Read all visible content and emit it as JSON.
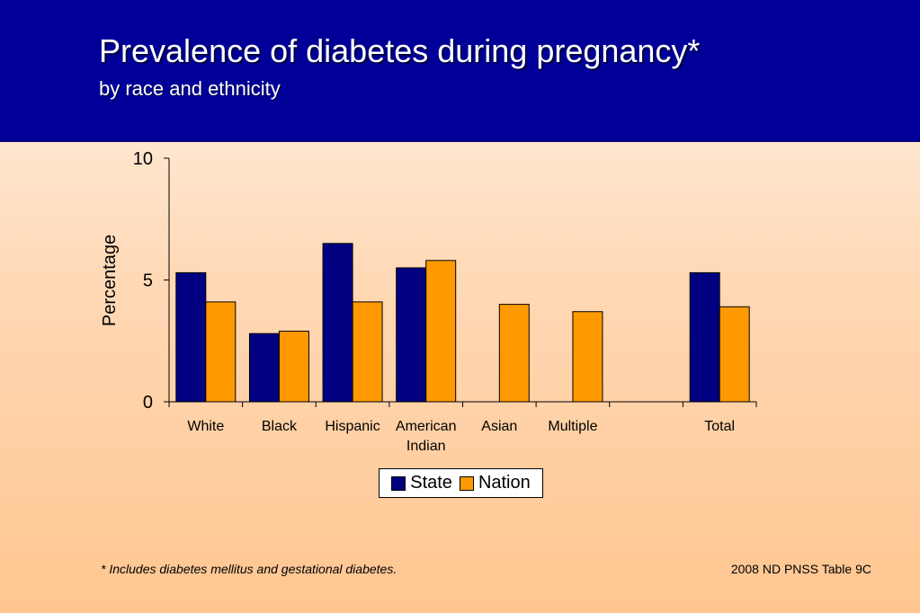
{
  "header": {
    "title": "Prevalence of diabetes during pregnancy*",
    "subtitle": "by race and ethnicity"
  },
  "colors": {
    "header_bg": "#000099",
    "state": "#000080",
    "nation": "#ff9900"
  },
  "chart_data": {
    "type": "bar",
    "title": "",
    "xlabel": "",
    "ylabel": "Percentage",
    "ylim": [
      0,
      10
    ],
    "yticks": [
      0,
      5,
      10
    ],
    "categories": [
      [
        "White"
      ],
      [
        "Black"
      ],
      [
        "Hispanic"
      ],
      [
        "American",
        "Indian"
      ],
      [
        "Asian"
      ],
      [
        "Multiple"
      ],
      [
        ""
      ],
      [
        "Total"
      ]
    ],
    "series": [
      {
        "name": "State",
        "color": "#000080",
        "values": [
          5.3,
          2.8,
          6.5,
          5.5,
          null,
          null,
          null,
          5.3
        ]
      },
      {
        "name": "Nation",
        "color": "#ff9900",
        "values": [
          4.1,
          2.9,
          4.1,
          5.8,
          4.0,
          3.7,
          null,
          3.9
        ]
      }
    ],
    "legend": "bottom",
    "grid": false
  },
  "footnote": "*  Includes diabetes mellitus and gestational diabetes.",
  "source": "2008 ND PNSS Table 9C"
}
